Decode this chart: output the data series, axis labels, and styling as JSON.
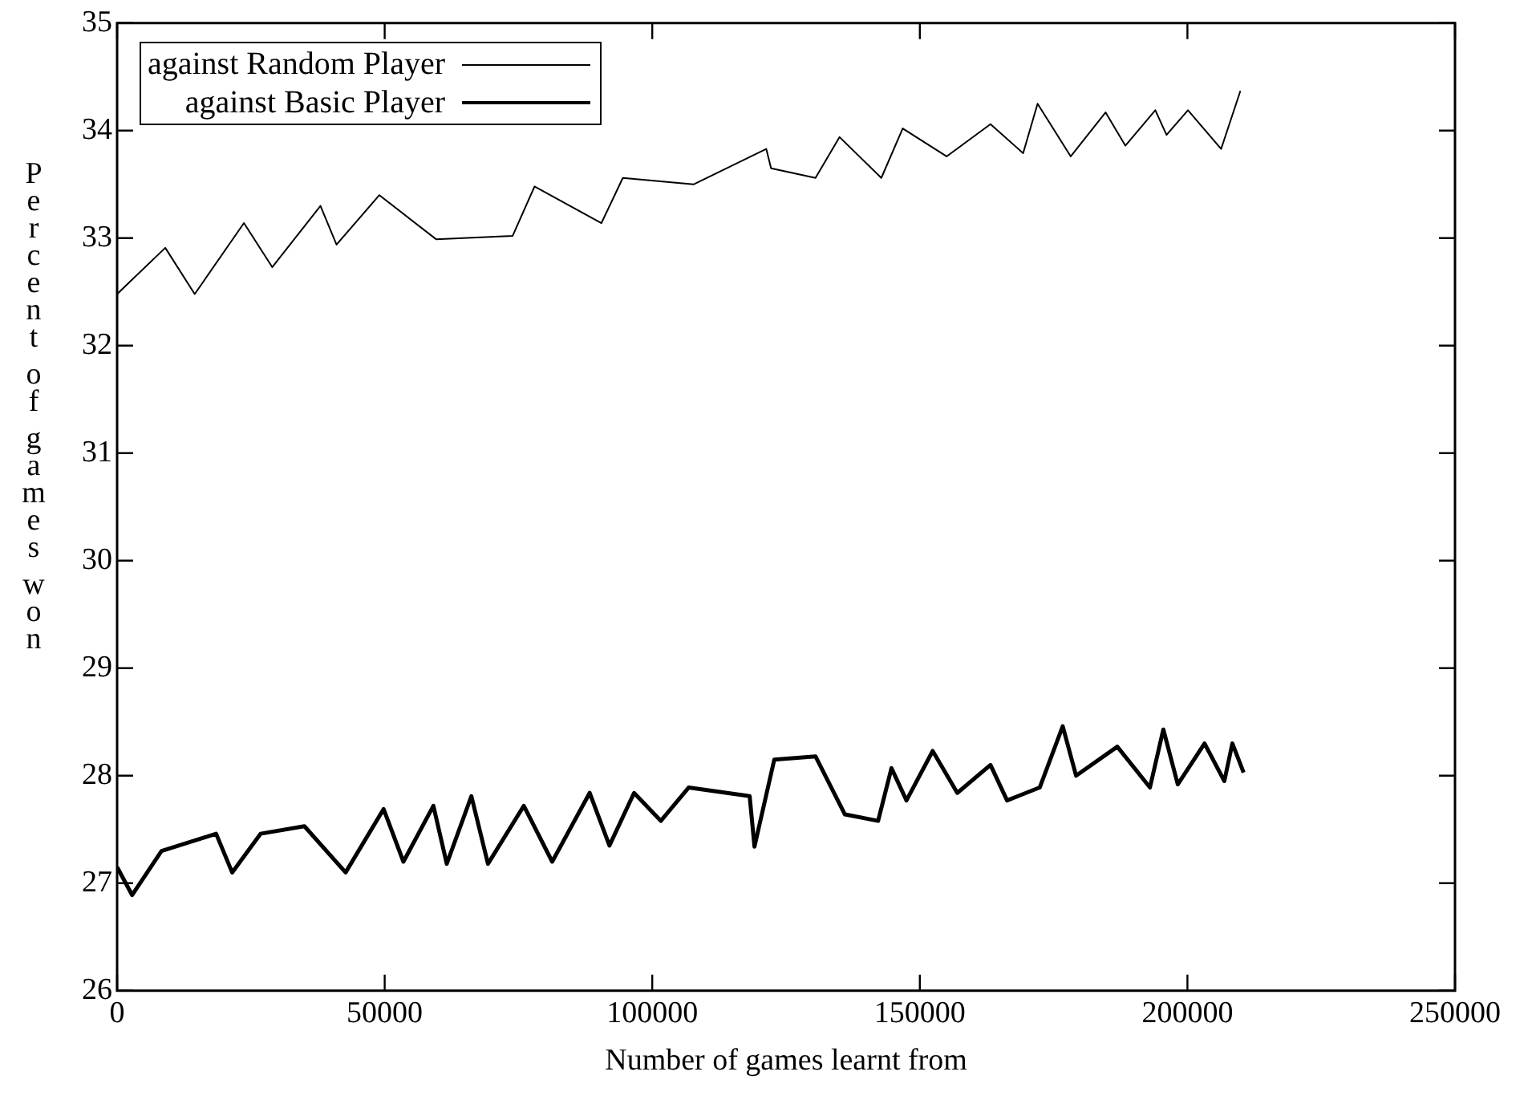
{
  "chart_data": {
    "type": "line",
    "xlabel": "Number of games learnt from",
    "ylabel": "Percent of games won",
    "xlim": [
      0,
      250000
    ],
    "xticks": [
      0,
      50000,
      100000,
      150000,
      200000,
      250000
    ],
    "ylim": [
      26,
      35
    ],
    "yticks": [
      26,
      27,
      28,
      29,
      30,
      31,
      32,
      33,
      34,
      35
    ],
    "grid": false,
    "legend": "top left",
    "marker": "none",
    "line_style": "solid",
    "series": [
      {
        "name": "against Random Player",
        "color": "#000000",
        "x": [
          0,
          9000,
          14500,
          23700,
          29000,
          38000,
          41000,
          49000,
          59600,
          73900,
          78000,
          90500,
          94500,
          107700,
          121300,
          122200,
          130500,
          135000,
          142800,
          146800,
          155000,
          163200,
          169300,
          172000,
          178200,
          184700,
          188400,
          194000,
          196100,
          200100,
          206300,
          209900
        ],
        "values": [
          32.48,
          32.91,
          32.48,
          33.14,
          32.73,
          33.3,
          32.94,
          33.4,
          32.99,
          33.02,
          33.48,
          33.14,
          33.56,
          33.5,
          33.83,
          33.65,
          33.56,
          33.94,
          33.56,
          34.02,
          33.76,
          34.06,
          33.79,
          34.25,
          33.76,
          34.17,
          33.86,
          34.19,
          33.96,
          34.19,
          33.83,
          34.37
        ]
      },
      {
        "name": "against Basic Player",
        "color": "#000000",
        "x": [
          0,
          2800,
          8300,
          18500,
          21500,
          26800,
          35000,
          42700,
          49800,
          53500,
          59100,
          61600,
          66200,
          69300,
          76000,
          81300,
          88300,
          92000,
          96600,
          101600,
          106800,
          118200,
          119100,
          122800,
          130500,
          136000,
          142200,
          144700,
          147500,
          152400,
          157000,
          163200,
          166300,
          172400,
          176700,
          179200,
          186900,
          193000,
          195500,
          198200,
          203200,
          206900,
          208400,
          210500
        ],
        "values": [
          27.15,
          26.89,
          27.3,
          27.46,
          27.1,
          27.46,
          27.53,
          27.1,
          27.69,
          27.2,
          27.72,
          27.18,
          27.81,
          27.18,
          27.72,
          27.2,
          27.84,
          27.35,
          27.84,
          27.58,
          27.89,
          27.81,
          27.34,
          28.15,
          28.18,
          27.64,
          27.58,
          28.07,
          27.77,
          28.23,
          27.84,
          28.1,
          27.77,
          27.89,
          28.46,
          28.0,
          28.27,
          27.89,
          28.43,
          27.92,
          28.3,
          27.95,
          28.3,
          28.03
        ]
      }
    ]
  }
}
